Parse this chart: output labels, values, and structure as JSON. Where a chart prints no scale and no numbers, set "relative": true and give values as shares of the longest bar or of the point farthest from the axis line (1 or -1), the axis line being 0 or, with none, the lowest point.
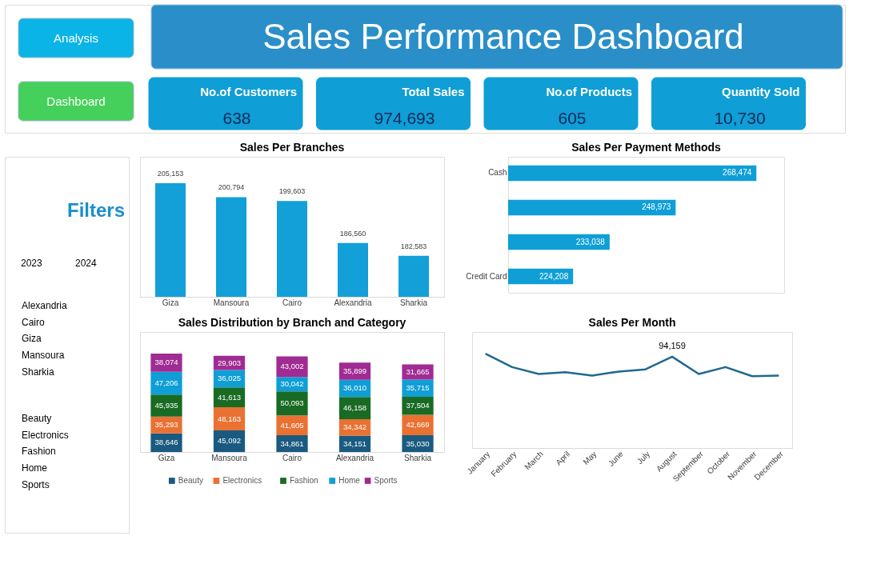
{
  "chart_data": [
    {
      "type": "other",
      "title": "Sales Performance Dashboard",
      "annotations": [
        "Analysis",
        "Dashboard"
      ],
      "categories": [
        "No.of Customers",
        "Total Sales",
        "No.of Products",
        "Quantity Sold"
      ],
      "value_labels": [
        "638",
        "974,693",
        "605",
        "10,730"
      ],
      "colors": [
        "#0f9ed5",
        "#0f9ed5",
        "#0f9ed5",
        "#0f9ed5"
      ]
    },
    {
      "type": "other",
      "title": "Filters",
      "annotations": [
        "2023",
        "2024",
        "Alexandria",
        "Cairo",
        "Giza",
        "Mansoura",
        "Sharkia",
        "Beauty",
        "Electronics",
        "Fashion",
        "Home",
        "Sports"
      ]
    },
    {
      "type": "bar",
      "title": "Sales Per Branches",
      "categories": [
        "Giza",
        "Mansoura",
        "Cairo",
        "Alexandria",
        "Sharkia"
      ],
      "values": [
        205153,
        200794,
        199603,
        186560,
        182583
      ],
      "value_labels": [
        "205,153",
        "200,794",
        "199,603",
        "186,560",
        "182,583"
      ],
      "color": "#139fd8",
      "tick_labels": "x"
    },
    {
      "type": "bar",
      "orientation": "horizontal",
      "title": "Sales Per Payment Methods",
      "categories": [
        "Cash",
        null,
        null,
        "Credit Card"
      ],
      "values": [
        268474,
        248973,
        233038,
        224208
      ],
      "value_labels": [
        "268,474",
        "248,973",
        "233,038",
        "224,208"
      ],
      "color": "#0f9fd6",
      "tick_labels": "y"
    },
    {
      "type": "bar",
      "stacked": true,
      "title": "Sales Distribution by Branch and Category",
      "categories": [
        "Giza",
        "Mansoura",
        "Cairo",
        "Alexandria",
        "Sharkia"
      ],
      "series": [
        {
          "name": "Beauty",
          "color": "#1a5a80",
          "values": [
            38646,
            45092,
            34861,
            34151,
            35030
          ],
          "value_labels": [
            "38,646",
            "45,092",
            "34,861",
            "34,151",
            "35,030"
          ]
        },
        {
          "name": "Electronics",
          "color": "#e97132",
          "values": [
            35293,
            48163,
            41605,
            34342,
            42669
          ],
          "value_labels": [
            "35,293",
            "48,163",
            "41,605",
            "34,342",
            "42,669"
          ]
        },
        {
          "name": "Fashion",
          "color": "#196b24",
          "values": [
            45935,
            41613,
            50093,
            46158,
            37504
          ],
          "value_labels": [
            "45,935",
            "41,613",
            "50,093",
            "46,158",
            "37,504"
          ]
        },
        {
          "name": "Home",
          "color": "#0f9ed5",
          "values": [
            47206,
            36025,
            30042,
            36010,
            35715
          ],
          "value_labels": [
            "47,206",
            "36,025",
            "30,042",
            "36,010",
            "35,715"
          ]
        },
        {
          "name": "Sports",
          "color": "#a02b93",
          "values": [
            38074,
            29903,
            43002,
            35899,
            31665
          ],
          "value_labels": [
            "38,074",
            "29,903",
            "43,002",
            "35,899",
            "31,665"
          ]
        }
      ],
      "legend": "bottom",
      "tick_labels": "x"
    },
    {
      "type": "line",
      "title": "Sales Per Month",
      "relative": true,
      "categories": [
        "January",
        "February",
        "March",
        "April",
        "May",
        "June",
        "July",
        "August",
        "September",
        "October",
        "November",
        "December"
      ],
      "values": [
        1,
        0.858,
        0.784,
        0.803,
        0.768,
        0.811,
        0.834,
        0.968,
        0.784,
        0.858,
        0.761,
        0.768
      ],
      "color": "#1f6a8f",
      "line_style": "solid",
      "tick_labels": "x",
      "annotations": [
        {
          "text": "94,159",
          "x": "August",
          "y": 0.968
        }
      ]
    }
  ]
}
